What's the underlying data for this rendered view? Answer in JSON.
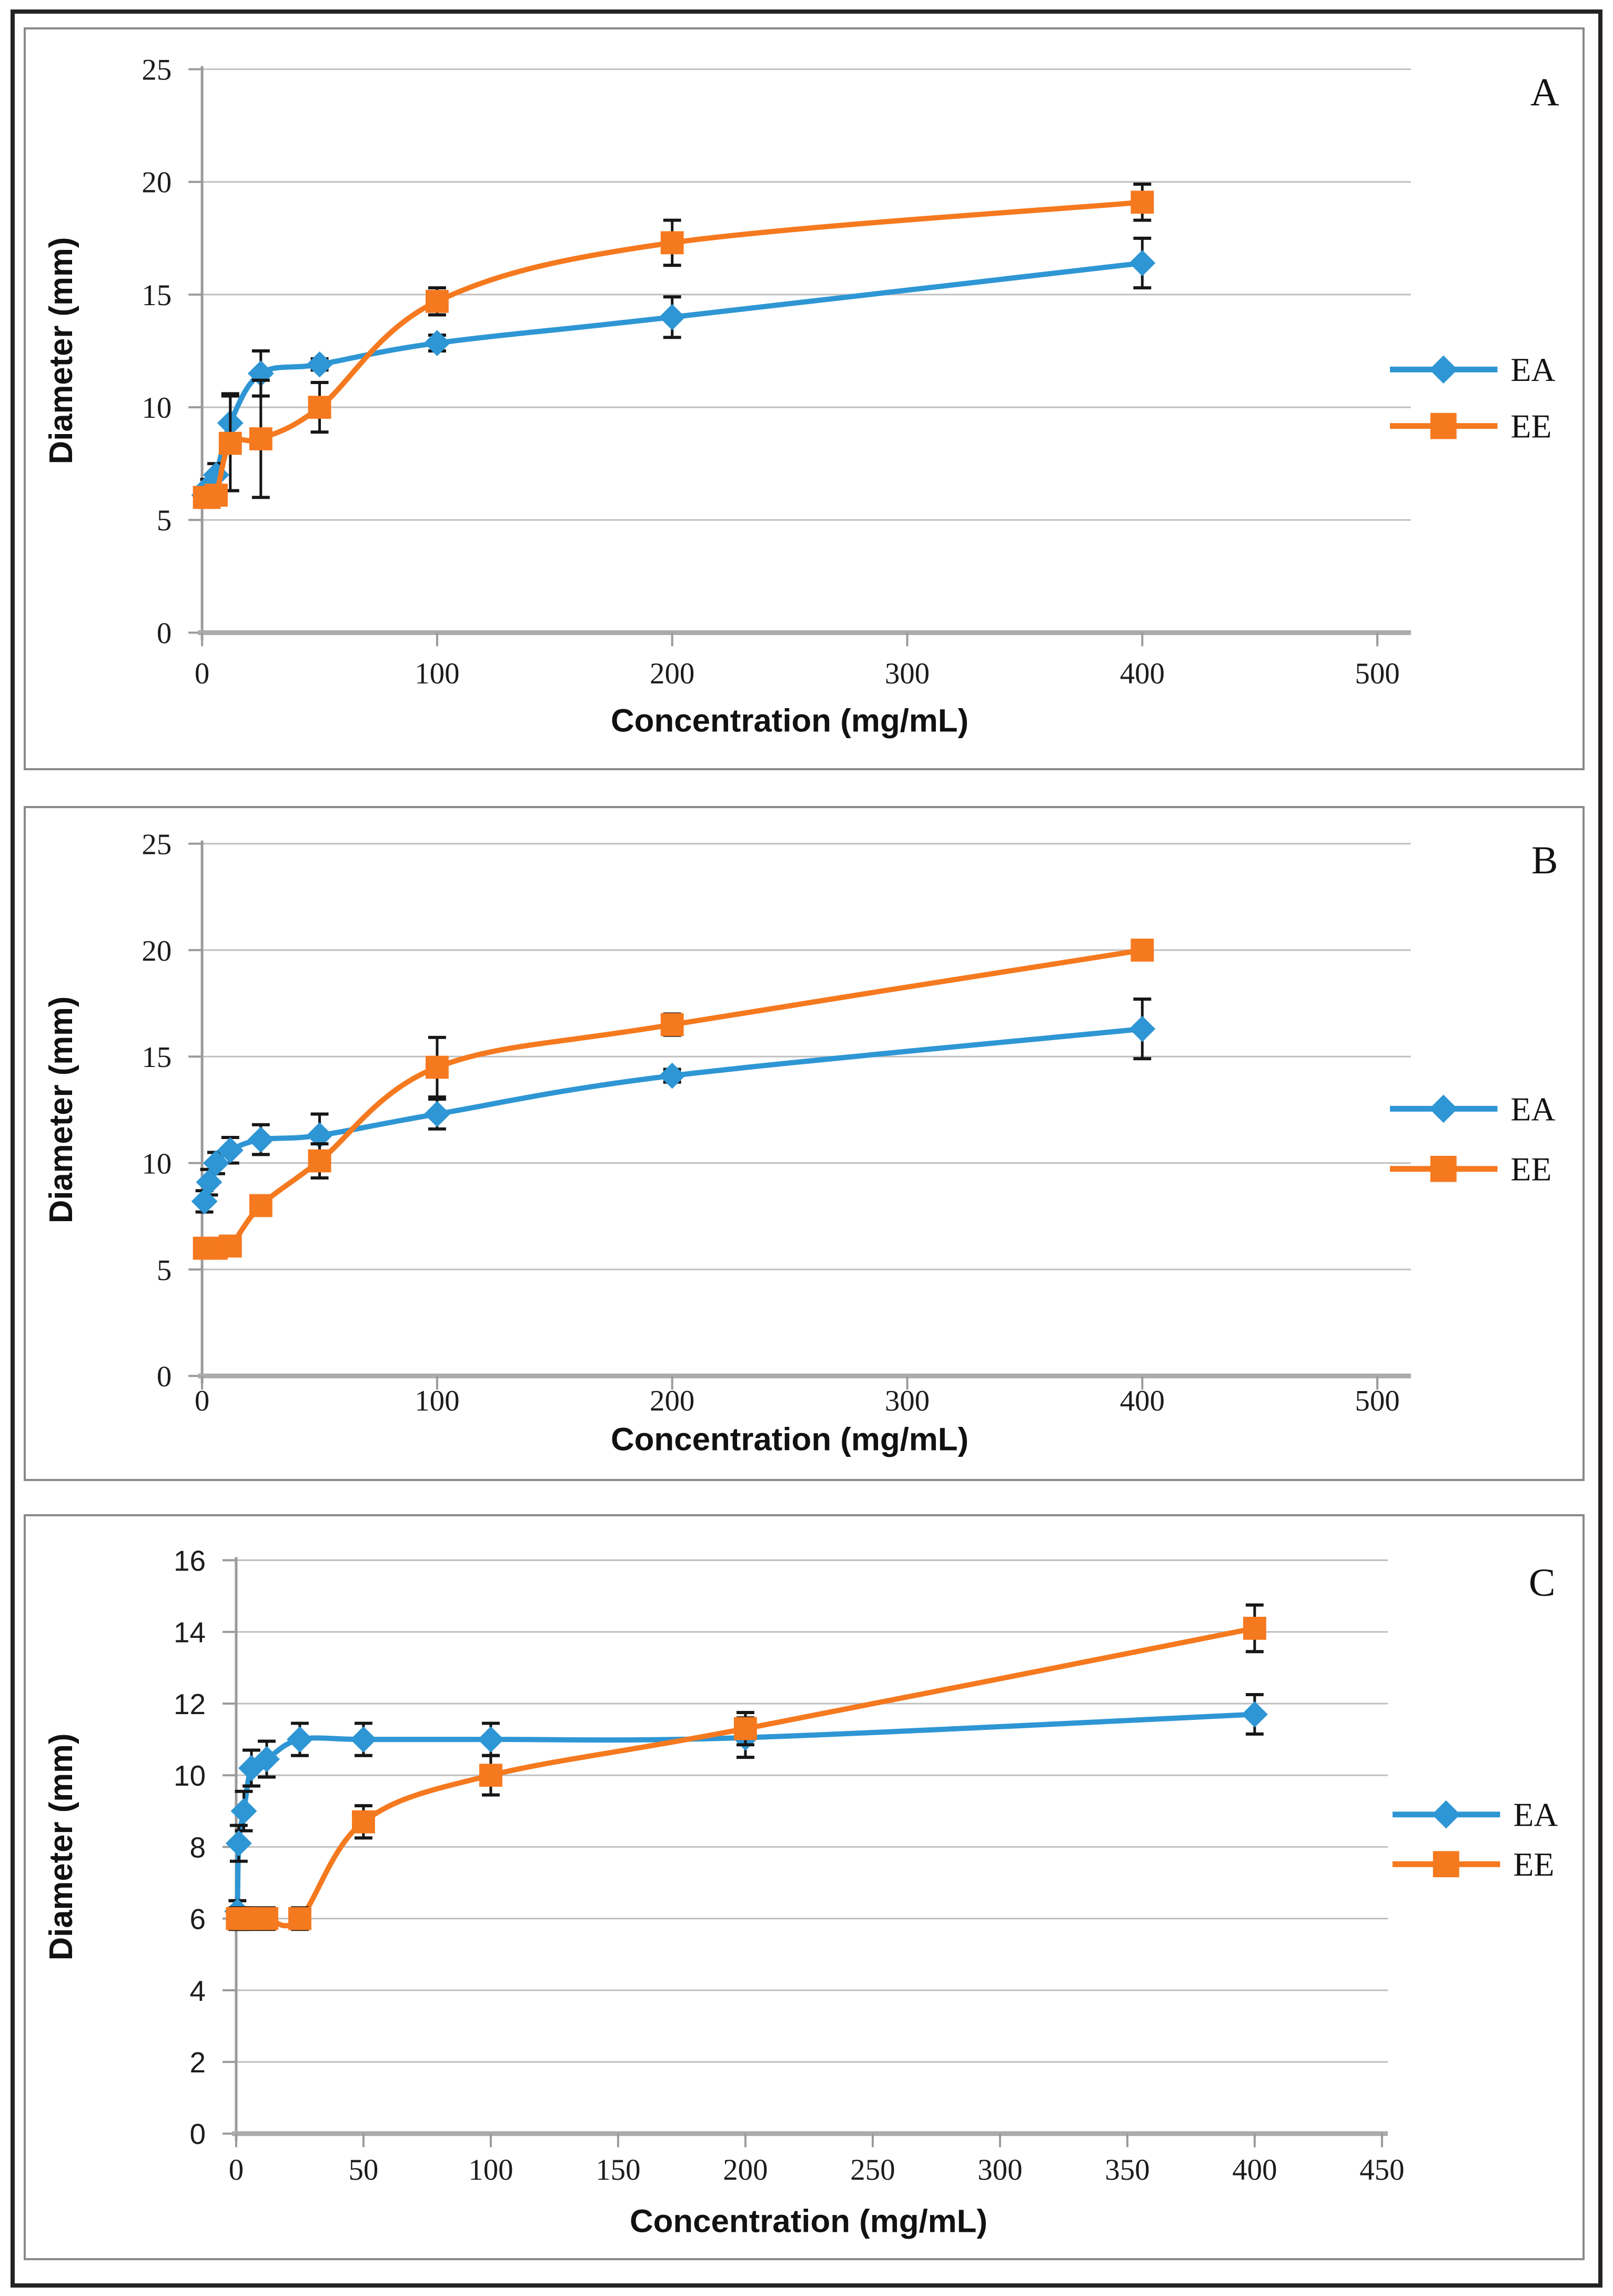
{
  "chart_data": [
    {
      "type": "line",
      "panel": "A",
      "xlabel": "Concentration (mg/mL)",
      "ylabel": "Diameter (mm)",
      "xlim": [
        0,
        500
      ],
      "ylim": [
        0,
        25
      ],
      "x_ticks": [
        0,
        100,
        200,
        300,
        400,
        500
      ],
      "y_ticks": [
        0,
        5,
        10,
        15,
        20,
        25
      ],
      "grid": "horizontal",
      "legend_position": "right",
      "series": [
        {
          "name": "EA",
          "marker": "diamond",
          "color": "#2E96D4",
          "x": [
            1,
            3,
            6,
            12,
            25,
            50,
            100,
            200,
            400
          ],
          "y": [
            6.1,
            6.5,
            7.0,
            9.3,
            11.5,
            11.9,
            12.85,
            14.0,
            16.4
          ],
          "err": [
            0.2,
            0.3,
            0.5,
            1.3,
            1.0,
            0.25,
            0.35,
            0.9,
            1.1
          ]
        },
        {
          "name": "EE",
          "marker": "square",
          "color": "#F5791F",
          "x": [
            1,
            3,
            6,
            12,
            25,
            50,
            100,
            200,
            400
          ],
          "y": [
            6.0,
            6.0,
            6.1,
            8.4,
            8.6,
            10.0,
            14.7,
            17.3,
            19.1
          ],
          "err": [
            0.15,
            0.15,
            0.3,
            2.1,
            2.6,
            1.1,
            0.6,
            1.0,
            0.8
          ]
        }
      ]
    },
    {
      "type": "line",
      "panel": "B",
      "xlabel": "Concentration (mg/mL)",
      "ylabel": "Diameter (mm)",
      "xlim": [
        0,
        500
      ],
      "ylim": [
        0,
        25
      ],
      "x_ticks": [
        0,
        100,
        200,
        300,
        400,
        500
      ],
      "y_ticks": [
        0,
        5,
        10,
        15,
        20,
        25
      ],
      "grid": "horizontal",
      "legend_position": "right",
      "series": [
        {
          "name": "EA",
          "marker": "diamond",
          "color": "#2E96D4",
          "x": [
            1,
            3,
            6,
            12,
            25,
            50,
            100,
            200,
            400
          ],
          "y": [
            8.2,
            9.1,
            10.0,
            10.6,
            11.1,
            11.3,
            12.3,
            14.1,
            16.3
          ],
          "err": [
            0.5,
            0.6,
            0.5,
            0.6,
            0.7,
            1.0,
            0.7,
            0.3,
            1.4
          ]
        },
        {
          "name": "EE",
          "marker": "square",
          "color": "#F5791F",
          "x": [
            1,
            3,
            6,
            12,
            25,
            50,
            100,
            200,
            400
          ],
          "y": [
            6.0,
            6.0,
            6.0,
            6.1,
            8.0,
            10.1,
            14.5,
            16.5,
            20.0
          ],
          "err": [
            0.15,
            0.15,
            0.15,
            0.3,
            0.2,
            0.8,
            1.4,
            0.5,
            0.2
          ]
        }
      ]
    },
    {
      "type": "line",
      "panel": "C",
      "xlabel": "Concentration (mg/mL)",
      "ylabel": "Diameter (mm)",
      "xlim": [
        0,
        450
      ],
      "ylim": [
        0,
        16
      ],
      "x_ticks": [
        0,
        50,
        100,
        150,
        200,
        250,
        300,
        350,
        400,
        450
      ],
      "y_ticks": [
        0,
        2,
        4,
        6,
        8,
        10,
        12,
        14,
        16
      ],
      "grid": "horizontal",
      "legend_position": "right",
      "series": [
        {
          "name": "EA",
          "marker": "diamond",
          "color": "#2E96D4",
          "x": [
            0.5,
            1,
            3,
            6,
            12,
            25,
            50,
            100,
            200,
            400
          ],
          "y": [
            6.2,
            8.1,
            9.0,
            10.2,
            10.45,
            11.0,
            11.0,
            11.0,
            11.05,
            11.7
          ],
          "err": [
            0.3,
            0.5,
            0.55,
            0.5,
            0.5,
            0.45,
            0.45,
            0.45,
            0.55,
            0.55
          ]
        },
        {
          "name": "EE",
          "marker": "square",
          "color": "#F5791F",
          "x": [
            0.5,
            1,
            3,
            6,
            12,
            25,
            50,
            100,
            200,
            400
          ],
          "y": [
            6.0,
            6.0,
            6.0,
            6.0,
            6.0,
            6.0,
            8.7,
            10.0,
            11.3,
            14.1
          ],
          "err": [
            0.3,
            0.3,
            0.3,
            0.3,
            0.3,
            0.3,
            0.45,
            0.55,
            0.45,
            0.65
          ]
        }
      ]
    }
  ]
}
